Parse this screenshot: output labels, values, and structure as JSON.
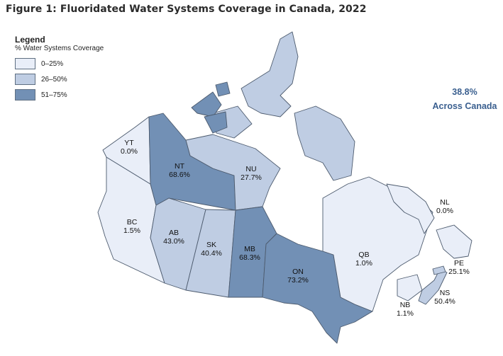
{
  "title": "Figure 1: Fluoridated Water Systems Coverage in Canada, 2022",
  "legend": {
    "heading": "Legend",
    "subheading": "% Water Systems Coverage",
    "items": [
      {
        "label": "0–25%",
        "color": "#e9eef8"
      },
      {
        "label": "26–50%",
        "color": "#bfcde3"
      },
      {
        "label": "51–75%",
        "color": "#7290b5"
      }
    ]
  },
  "national": {
    "value": "38.8%",
    "label": "Across Canada"
  },
  "provinces": {
    "YT": {
      "code": "YT",
      "value": "0.0%"
    },
    "NT": {
      "code": "NT",
      "value": "68.6%"
    },
    "NU": {
      "code": "NU",
      "value": "27.7%"
    },
    "BC": {
      "code": "BC",
      "value": "1.5%"
    },
    "AB": {
      "code": "AB",
      "value": "43.0%"
    },
    "SK": {
      "code": "SK",
      "value": "40.4%"
    },
    "MB": {
      "code": "MB",
      "value": "68.3%"
    },
    "ON": {
      "code": "ON",
      "value": "73.2%"
    },
    "QB": {
      "code": "QB",
      "value": "1.0%"
    },
    "NL": {
      "code": "NL",
      "value": "0.0%"
    },
    "PE": {
      "code": "PE",
      "value": "25.1%"
    },
    "NS": {
      "code": "NS",
      "value": "50.4%"
    },
    "NB": {
      "code": "NB",
      "value": "1.1%"
    }
  }
}
